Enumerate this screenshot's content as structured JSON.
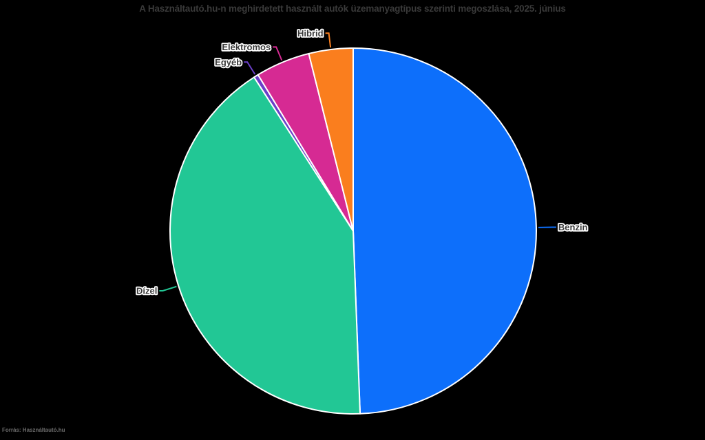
{
  "title": "A Használtautó.hu-n meghirdetett használt autók üzemanyagtípus szerinti megoszlása, 2025. június",
  "source": "Forrás: Használtautó.hu",
  "colors": {
    "background": "#000000",
    "title_text": "#3a3a3a",
    "label_text": "#3a3a3a",
    "label_halo": "#ffffff",
    "slice_separator": "#ffffff",
    "source_text": "#6e6e6e"
  },
  "chart_data": {
    "type": "pie",
    "title": "A Használtautó.hu-n meghirdetett használt autók üzemanyagtípus szerinti megoszlása, 2025. június",
    "categories": [
      "Benzin",
      "Dízel",
      "Egyéb",
      "Elektromos",
      "Hibrid"
    ],
    "values": [
      49.4,
      41.5,
      0.4,
      4.8,
      3.9
    ],
    "values_note": "percent, estimated from slice angles (no numeric labels shown)",
    "colors": [
      "#0d6ffb",
      "#22c795",
      "#6b3fc9",
      "#d62a93",
      "#fa7e1e"
    ],
    "start_angle_deg": 0,
    "direction": "clockwise",
    "labels": "outside with colored leader lines",
    "legend_position": "none"
  }
}
